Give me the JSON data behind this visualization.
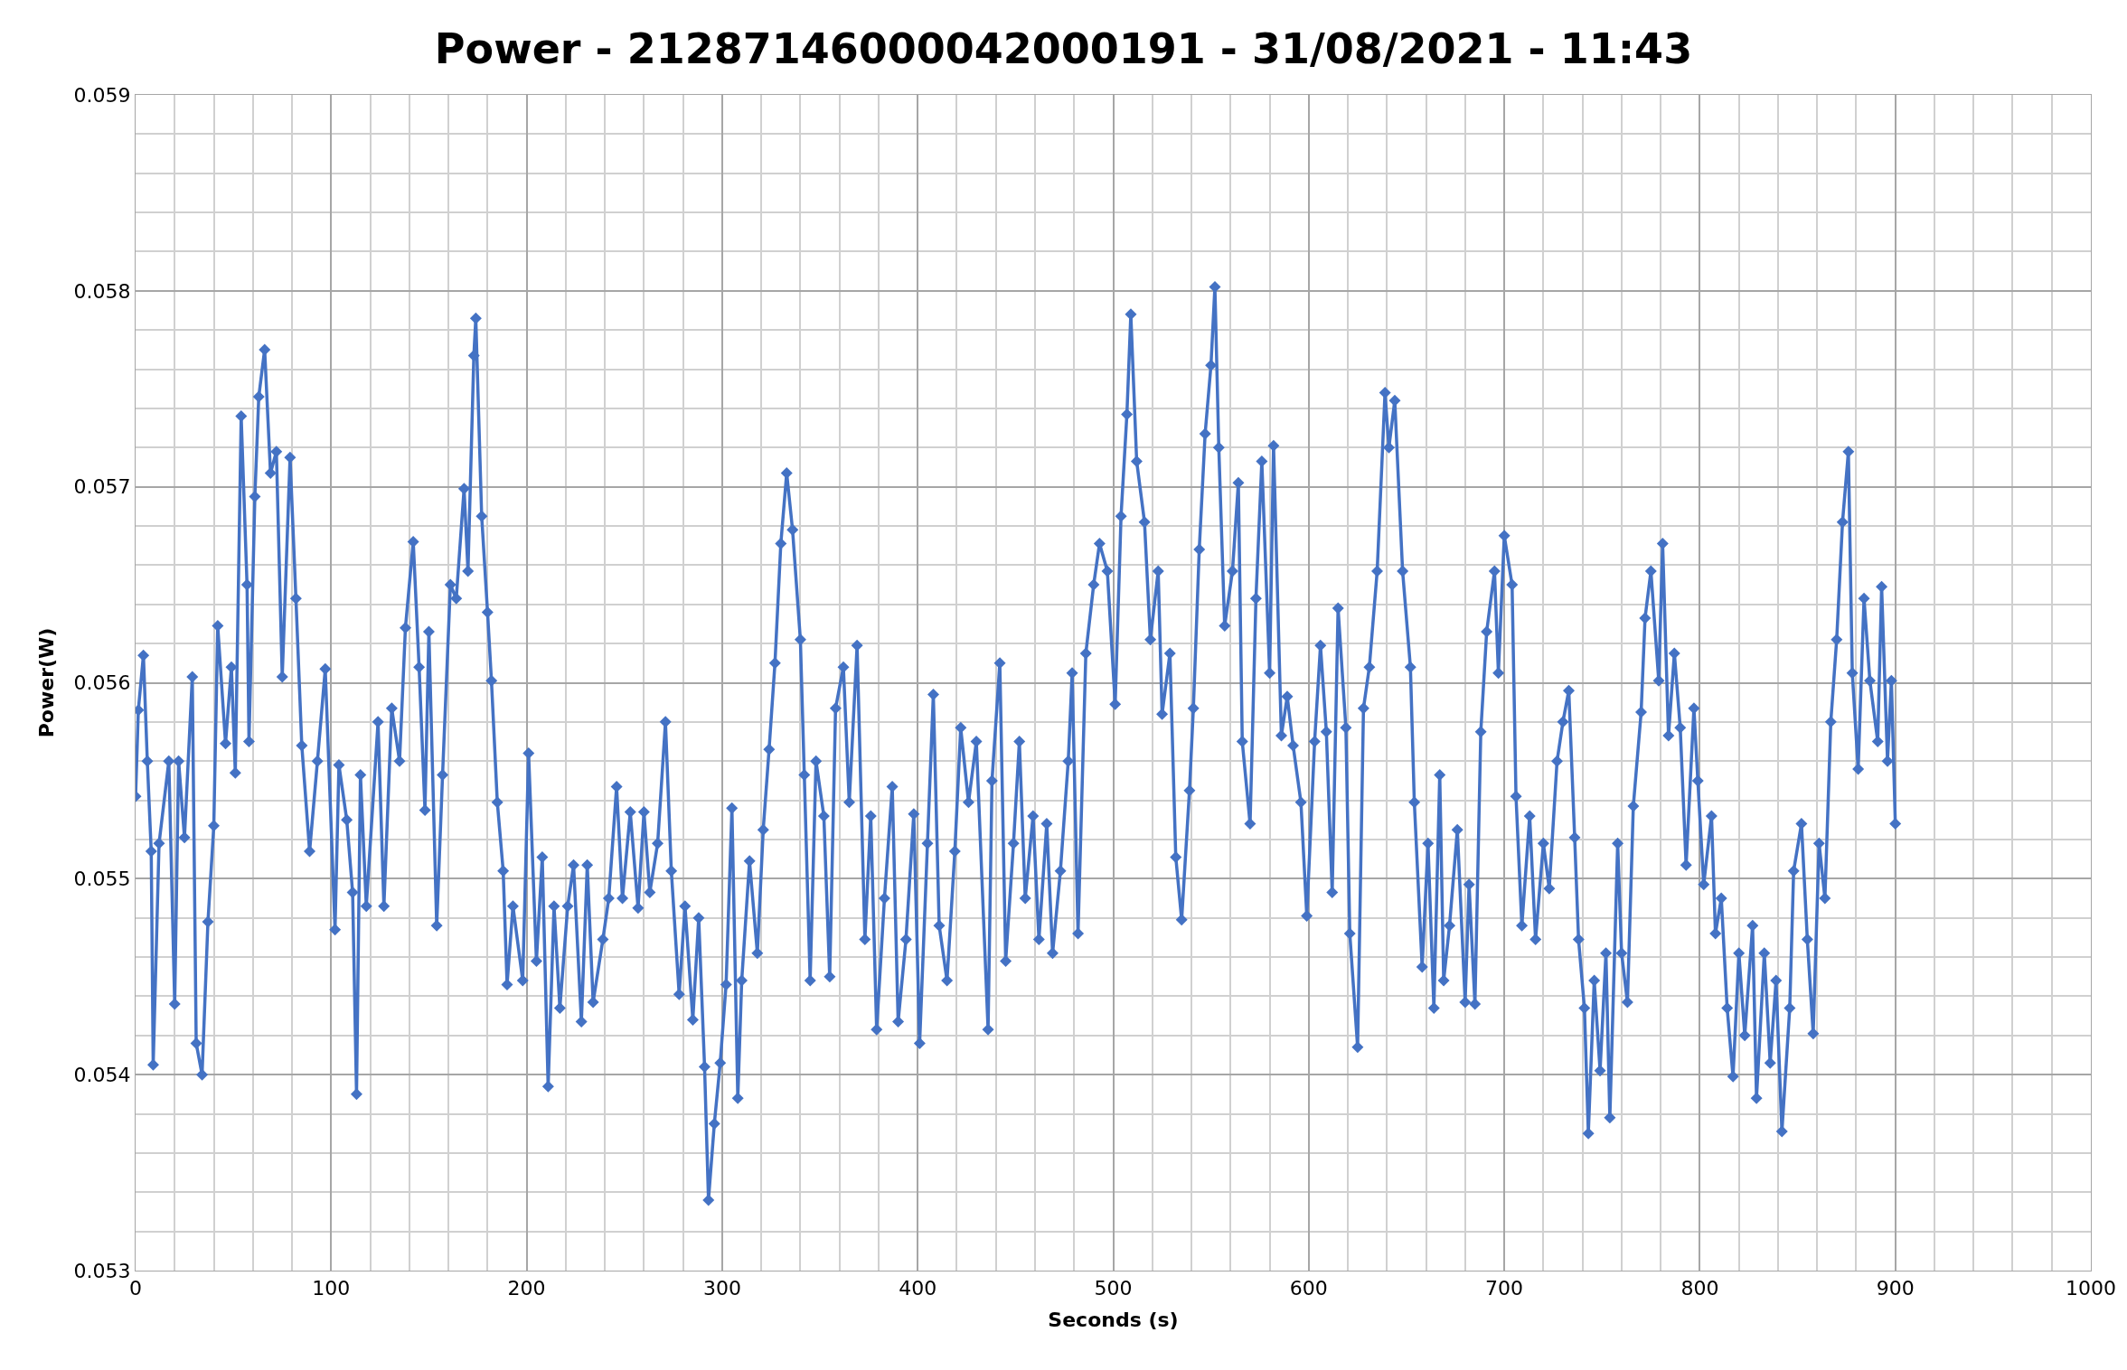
{
  "chart_data": {
    "type": "line",
    "title": "Power - 21287146000042000191 - 31/08/2021 - 11:43",
    "xlabel": "Seconds (s)",
    "ylabel": "Power(W)",
    "x": [
      0,
      1.4,
      4,
      6,
      8,
      9,
      12,
      17,
      20,
      22,
      25,
      29,
      31,
      34,
      37,
      40,
      42,
      46,
      49,
      51,
      54,
      57,
      58,
      61,
      63,
      66,
      69,
      72,
      75,
      79,
      82,
      85,
      89,
      93,
      97,
      102,
      104,
      108,
      111,
      113,
      115,
      118,
      124,
      127,
      131,
      135,
      138,
      142,
      145,
      148,
      150,
      154,
      157,
      161,
      164,
      168,
      170,
      173,
      174,
      177,
      180,
      182,
      185,
      188,
      190,
      193,
      198,
      201,
      205,
      208,
      211,
      214,
      217,
      221,
      224,
      228,
      231,
      234,
      239,
      242,
      246,
      249,
      253,
      257,
      260,
      263,
      267,
      271,
      274,
      278,
      281,
      285,
      288,
      291,
      293,
      296,
      299,
      302,
      305,
      308,
      310,
      314,
      318,
      321,
      324,
      327,
      330,
      333,
      336,
      340,
      342,
      345,
      348,
      352,
      355,
      358,
      362,
      365,
      369,
      373,
      376,
      379,
      383,
      387,
      390,
      394,
      398,
      401,
      405,
      408,
      411,
      415,
      419,
      422,
      426,
      430,
      436,
      438,
      442,
      445,
      449,
      452,
      455,
      459,
      462,
      466,
      469,
      473,
      477,
      479,
      482,
      486,
      490,
      493,
      497,
      501,
      504,
      507,
      509,
      512,
      516,
      519,
      523,
      525,
      529,
      532,
      535,
      539,
      541,
      544,
      547,
      550,
      552,
      554,
      557,
      561,
      564,
      566,
      570,
      573,
      576,
      580,
      582,
      586,
      589,
      592,
      596,
      599,
      603,
      606,
      609,
      612,
      615,
      619,
      621,
      625,
      628,
      631,
      635,
      639,
      641,
      644,
      648,
      652,
      654,
      658,
      661,
      664,
      667,
      669,
      672,
      676,
      680,
      682,
      685,
      688,
      691,
      695,
      697,
      700,
      704,
      706,
      709,
      713,
      716,
      720,
      723,
      727,
      730,
      733,
      736,
      738,
      741,
      743,
      746,
      749,
      752,
      754,
      758,
      760,
      763,
      766,
      770,
      772,
      775,
      779,
      781,
      784,
      787,
      790,
      793,
      797,
      799,
      802,
      806,
      808,
      811,
      814,
      817,
      820,
      823,
      827,
      829,
      833,
      836,
      839,
      842,
      846,
      848,
      852,
      855,
      858,
      861,
      864,
      867,
      870,
      873,
      876,
      878,
      881,
      884,
      887,
      891,
      893,
      896,
      898,
      900
    ],
    "series": [
      {
        "color": "#4472c4",
        "values": [
          0.05542,
          0.05586,
          0.05614,
          0.0556,
          0.05514,
          0.05405,
          0.05518,
          0.0556,
          0.05436,
          0.0556,
          0.05521,
          0.05603,
          0.05416,
          0.054,
          0.05478,
          0.05527,
          0.05629,
          0.05569,
          0.05608,
          0.05554,
          0.05736,
          0.0565,
          0.0557,
          0.05695,
          0.05746,
          0.0577,
          0.05707,
          0.05718,
          0.05603,
          0.05715,
          0.05643,
          0.05568,
          0.05514,
          0.0556,
          0.05607,
          0.05474,
          0.05558,
          0.0553,
          0.05493,
          0.0539,
          0.05553,
          0.05486,
          0.0558,
          0.05486,
          0.05587,
          0.0556,
          0.05628,
          0.05672,
          0.05608,
          0.05535,
          0.05626,
          0.05476,
          0.05553,
          0.0565,
          0.05643,
          0.05699,
          0.05657,
          0.05767,
          0.05786,
          0.05685,
          0.05636,
          0.05601,
          0.05539,
          0.05504,
          0.05446,
          0.05486,
          0.05448,
          0.05564,
          0.05458,
          0.05511,
          0.05394,
          0.05486,
          0.05434,
          0.05486,
          0.05507,
          0.05427,
          0.05507,
          0.05437,
          0.05469,
          0.0549,
          0.05547,
          0.0549,
          0.05534,
          0.05485,
          0.05534,
          0.05493,
          0.05518,
          0.0558,
          0.05504,
          0.05441,
          0.05486,
          0.05428,
          0.0548,
          0.05404,
          0.05336,
          0.05375,
          0.05406,
          0.05446,
          0.05536,
          0.05388,
          0.05448,
          0.05509,
          0.05462,
          0.05525,
          0.05566,
          0.0561,
          0.05671,
          0.05707,
          0.05678,
          0.05622,
          0.05553,
          0.05448,
          0.0556,
          0.05532,
          0.0545,
          0.05587,
          0.05608,
          0.05539,
          0.05619,
          0.05469,
          0.05532,
          0.05423,
          0.0549,
          0.05547,
          0.05427,
          0.05469,
          0.05533,
          0.05416,
          0.05518,
          0.05594,
          0.05476,
          0.05448,
          0.05514,
          0.05577,
          0.05539,
          0.0557,
          0.05423,
          0.0555,
          0.0561,
          0.05458,
          0.05518,
          0.0557,
          0.0549,
          0.05532,
          0.05469,
          0.05528,
          0.05462,
          0.05504,
          0.0556,
          0.05605,
          0.05472,
          0.05615,
          0.0565,
          0.05671,
          0.05657,
          0.05589,
          0.05685,
          0.05737,
          0.05788,
          0.05713,
          0.05682,
          0.05622,
          0.05657,
          0.05584,
          0.05615,
          0.05511,
          0.05479,
          0.05545,
          0.05587,
          0.05668,
          0.05727,
          0.05762,
          0.05802,
          0.0572,
          0.05629,
          0.05657,
          0.05702,
          0.0557,
          0.05528,
          0.05643,
          0.05713,
          0.05605,
          0.05721,
          0.05573,
          0.05593,
          0.05568,
          0.05539,
          0.05481,
          0.0557,
          0.05619,
          0.05575,
          0.05493,
          0.05638,
          0.05577,
          0.05472,
          0.05414,
          0.05587,
          0.05608,
          0.05657,
          0.05748,
          0.0572,
          0.05744,
          0.05657,
          0.05608,
          0.05539,
          0.05455,
          0.05518,
          0.05434,
          0.05553,
          0.05448,
          0.05476,
          0.05525,
          0.05437,
          0.05497,
          0.05436,
          0.05575,
          0.05626,
          0.05657,
          0.05605,
          0.05675,
          0.0565,
          0.05542,
          0.05476,
          0.05532,
          0.05469,
          0.05518,
          0.05495,
          0.0556,
          0.0558,
          0.05596,
          0.05521,
          0.05469,
          0.05434,
          0.0537,
          0.05448,
          0.05402,
          0.05462,
          0.05378,
          0.05518,
          0.05462,
          0.05437,
          0.05537,
          0.05585,
          0.05633,
          0.05657,
          0.05601,
          0.05671,
          0.05573,
          0.05615,
          0.05577,
          0.05507,
          0.05587,
          0.0555,
          0.05497,
          0.05532,
          0.05472,
          0.0549,
          0.05434,
          0.05399,
          0.05462,
          0.0542,
          0.05476,
          0.05388,
          0.05462,
          0.05406,
          0.05448,
          0.05371,
          0.05434,
          0.05504,
          0.05528,
          0.05469,
          0.05421,
          0.05518,
          0.0549,
          0.0558,
          0.05622,
          0.05682,
          0.05718,
          0.05605,
          0.05556,
          0.05643,
          0.05601,
          0.0557,
          0.05649,
          0.0556,
          0.05601,
          0.05528
        ]
      }
    ],
    "xlim": [
      0,
      1000
    ],
    "xticks": [
      0,
      100,
      200,
      300,
      400,
      500,
      600,
      700,
      800,
      900,
      1000
    ],
    "ylim": [
      0.053,
      0.059
    ],
    "yticks": [
      0.053,
      0.054,
      0.055,
      0.056,
      0.057,
      0.058,
      0.059
    ],
    "grid": true,
    "marker": "diamond",
    "line_style": "solid"
  }
}
